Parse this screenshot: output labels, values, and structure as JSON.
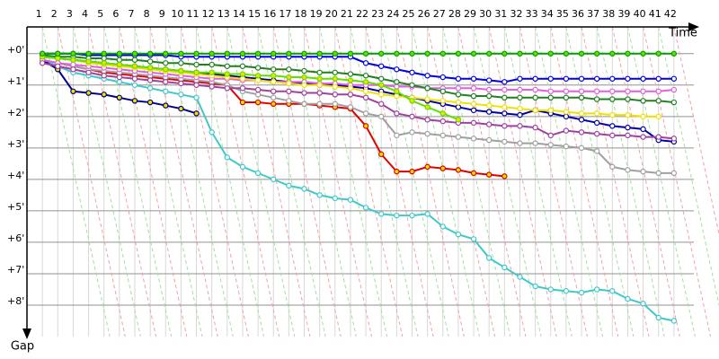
{
  "chart_data": {
    "type": "line",
    "xlabel": "Time",
    "ylabel": "Gap",
    "x": [
      1,
      2,
      3,
      4,
      5,
      6,
      7,
      8,
      9,
      10,
      11,
      12,
      13,
      14,
      15,
      16,
      17,
      18,
      19,
      20,
      21,
      22,
      23,
      24,
      25,
      26,
      27,
      28,
      29,
      30,
      31,
      32,
      33,
      34,
      35,
      36,
      37,
      38,
      39,
      40,
      41,
      42
    ],
    "xlim": [
      0,
      42.3
    ],
    "ylim": [
      -0.85,
      9.0
    ],
    "yticks": [
      {
        "value": 0,
        "label": "+0'"
      },
      {
        "value": 1,
        "label": "+1'"
      },
      {
        "value": 2,
        "label": "+2'"
      },
      {
        "value": 3,
        "label": "+3'"
      },
      {
        "value": 4,
        "label": "+4'"
      },
      {
        "value": 5,
        "label": "+5'"
      },
      {
        "value": 6,
        "label": "+6'"
      },
      {
        "value": 7,
        "label": "+7'"
      },
      {
        "value": 8,
        "label": "+8'"
      }
    ],
    "grid": true,
    "series": [
      {
        "color": "#40c8c8",
        "marker_color": "#ffffff",
        "values": [
          0.2,
          0.4,
          0.6,
          0.7,
          0.8,
          0.9,
          1.0,
          1.1,
          1.2,
          1.3,
          1.4,
          2.5,
          3.3,
          3.6,
          3.8,
          4.0,
          4.2,
          4.3,
          4.5,
          4.6,
          4.65,
          4.9,
          5.1,
          5.15,
          5.15,
          5.1,
          5.5,
          5.75,
          5.9,
          6.5,
          6.8,
          7.1,
          7.4,
          7.5,
          7.55,
          7.6,
          7.5,
          7.55,
          7.8,
          7.95,
          8.4,
          8.5
        ]
      },
      {
        "color": "#e00000",
        "marker_color": "#f0e000",
        "values": [
          0.2,
          0.3,
          0.4,
          0.5,
          0.6,
          0.65,
          0.7,
          0.75,
          0.8,
          0.85,
          0.9,
          0.95,
          1.0,
          1.55,
          1.55,
          1.6,
          1.6,
          1.6,
          1.65,
          1.7,
          1.75,
          2.3,
          3.2,
          3.75,
          3.75,
          3.6,
          3.65,
          3.7,
          3.8,
          3.85,
          3.9,
          null,
          null,
          null,
          null,
          null,
          null,
          null,
          null,
          null,
          null,
          null
        ]
      },
      {
        "color": "#000080",
        "marker_color": "#f0e000",
        "values": [
          0.2,
          0.5,
          1.2,
          1.25,
          1.3,
          1.4,
          1.5,
          1.55,
          1.65,
          1.75,
          1.9,
          null,
          null,
          null,
          null,
          null,
          null,
          null,
          null,
          null,
          null,
          null,
          null,
          null,
          null,
          null,
          null,
          null,
          null,
          null,
          null,
          null,
          null,
          null,
          null,
          null,
          null,
          null,
          null,
          null,
          null,
          null
        ]
      },
      {
        "color": "#a0a0a0",
        "marker_color": "#ffffff",
        "values": [
          0.2,
          0.3,
          0.4,
          0.5,
          0.55,
          0.6,
          0.65,
          0.7,
          0.75,
          0.8,
          0.85,
          0.9,
          1.0,
          1.2,
          1.3,
          1.4,
          1.5,
          1.6,
          1.6,
          1.6,
          1.7,
          1.9,
          2.0,
          2.6,
          2.5,
          2.55,
          2.6,
          2.65,
          2.7,
          2.75,
          2.8,
          2.85,
          2.85,
          2.9,
          2.95,
          3.0,
          3.1,
          3.6,
          3.7,
          3.75,
          3.8,
          3.8
        ]
      },
      {
        "color": "#0000a0",
        "marker_color": "#ffffff",
        "values": [
          0.1,
          0.15,
          0.2,
          0.25,
          0.3,
          0.35,
          0.4,
          0.45,
          0.5,
          0.55,
          0.6,
          0.65,
          0.7,
          0.75,
          0.8,
          0.85,
          0.9,
          0.95,
          1.0,
          1.0,
          1.05,
          1.1,
          1.2,
          1.3,
          1.4,
          1.5,
          1.6,
          1.7,
          1.8,
          1.85,
          1.9,
          1.95,
          1.8,
          1.9,
          2.0,
          2.1,
          2.2,
          2.3,
          2.35,
          2.4,
          2.75,
          2.8
        ]
      },
      {
        "color": "#0000e0",
        "marker_color": "#ffffff",
        "values": [
          0,
          0,
          0,
          0.05,
          0.05,
          0.05,
          0.05,
          0.05,
          0.05,
          0.1,
          0.1,
          0.1,
          0.1,
          0.1,
          0.1,
          0.1,
          0.1,
          0.1,
          0.1,
          0.1,
          0.1,
          0.3,
          0.4,
          0.5,
          0.6,
          0.7,
          0.75,
          0.8,
          0.8,
          0.85,
          0.9,
          0.8,
          0.8,
          0.8,
          0.8,
          0.8,
          0.8,
          0.8,
          0.8,
          0.8,
          0.8,
          0.8
        ]
      },
      {
        "color": "#e060e0",
        "marker_color": "#ffffff",
        "values": [
          0.2,
          0.3,
          0.35,
          0.4,
          0.45,
          0.5,
          0.55,
          0.6,
          0.65,
          0.7,
          0.75,
          0.8,
          0.8,
          0.85,
          0.85,
          0.9,
          0.9,
          0.9,
          0.95,
          0.95,
          1.0,
          1.0,
          1.0,
          1.05,
          1.05,
          1.1,
          1.1,
          1.1,
          1.1,
          1.15,
          1.15,
          1.15,
          1.15,
          1.2,
          1.2,
          1.2,
          1.2,
          1.2,
          1.2,
          1.2,
          1.2,
          1.15
        ]
      },
      {
        "color": "#f0e000",
        "marker_color": "#ffffff",
        "values": [
          0.1,
          0.15,
          0.2,
          0.3,
          0.35,
          0.4,
          0.45,
          0.5,
          0.55,
          0.6,
          0.65,
          0.7,
          0.75,
          0.8,
          0.85,
          0.9,
          0.95,
          1.0,
          1.0,
          1.05,
          1.1,
          1.2,
          1.3,
          1.35,
          1.4,
          1.45,
          1.5,
          1.55,
          1.6,
          1.65,
          1.7,
          1.75,
          1.8,
          1.8,
          1.85,
          1.9,
          1.9,
          1.95,
          1.95,
          2.0,
          2.0,
          null
        ]
      },
      {
        "color": "#208020",
        "marker_color": "#ffffff",
        "values": [
          0.05,
          0.1,
          0.1,
          0.15,
          0.15,
          0.2,
          0.2,
          0.25,
          0.3,
          0.3,
          0.35,
          0.35,
          0.4,
          0.4,
          0.45,
          0.5,
          0.5,
          0.55,
          0.6,
          0.6,
          0.65,
          0.7,
          0.8,
          0.9,
          1.0,
          1.1,
          1.2,
          1.3,
          1.35,
          1.35,
          1.4,
          1.4,
          1.4,
          1.4,
          1.4,
          1.4,
          1.45,
          1.45,
          1.45,
          1.5,
          1.5,
          1.55
        ]
      },
      {
        "color": "#a040a0",
        "marker_color": "#ffffff",
        "values": [
          0.3,
          0.4,
          0.5,
          0.6,
          0.7,
          0.75,
          0.8,
          0.85,
          0.9,
          0.95,
          1.0,
          1.05,
          1.1,
          1.1,
          1.15,
          1.2,
          1.2,
          1.25,
          1.25,
          1.3,
          1.3,
          1.4,
          1.6,
          1.9,
          2.0,
          2.1,
          2.15,
          2.2,
          2.2,
          2.25,
          2.3,
          2.3,
          2.35,
          2.6,
          2.45,
          2.5,
          2.55,
          2.6,
          2.6,
          2.65,
          2.65,
          2.7
        ]
      },
      {
        "color": "#60e000",
        "marker_color": "#f0e000",
        "values": [
          0.1,
          0.15,
          0.2,
          0.25,
          0.3,
          0.35,
          0.4,
          0.45,
          0.5,
          0.55,
          0.6,
          0.6,
          0.65,
          0.65,
          0.7,
          0.7,
          0.75,
          0.75,
          0.8,
          0.8,
          0.85,
          0.9,
          1.0,
          1.2,
          1.5,
          1.7,
          1.9,
          2.1,
          null,
          null,
          null,
          null,
          null,
          null,
          null,
          null,
          null,
          null,
          null,
          null,
          null,
          null
        ]
      },
      {
        "color": "#00a000",
        "marker_color": "#60e000",
        "values": [
          0,
          0,
          0,
          0,
          0,
          0,
          0,
          0,
          0,
          0,
          0,
          0,
          0,
          0,
          0,
          0,
          0,
          0,
          0,
          0,
          0,
          0,
          0,
          0,
          0,
          0,
          0,
          0,
          0,
          0,
          0,
          0,
          0,
          0,
          0,
          0,
          0,
          0,
          0,
          0,
          0,
          0
        ]
      }
    ]
  }
}
